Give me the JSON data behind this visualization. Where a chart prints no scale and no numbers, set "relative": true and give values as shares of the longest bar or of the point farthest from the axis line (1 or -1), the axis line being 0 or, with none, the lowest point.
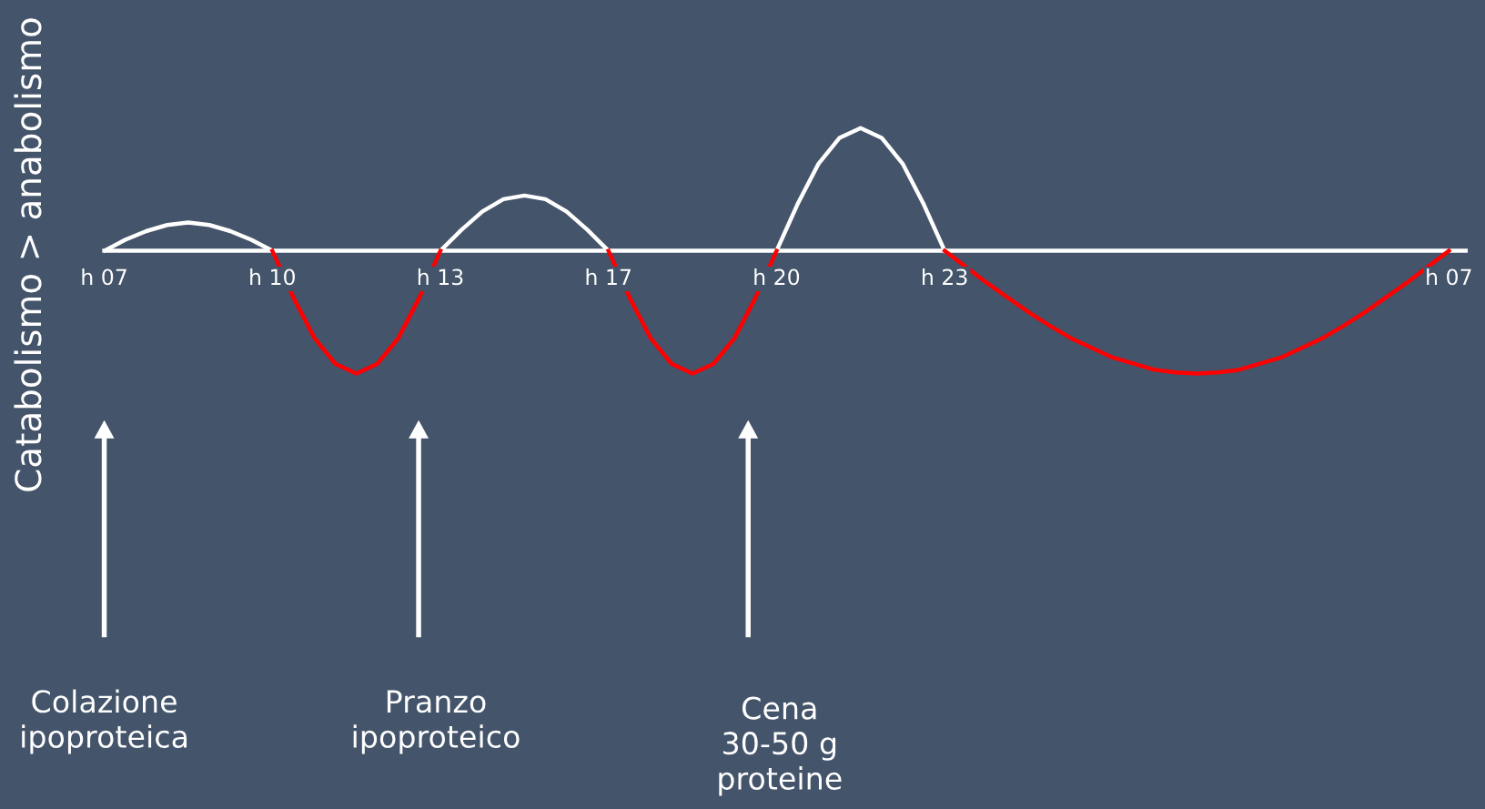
{
  "chart_data": {
    "type": "line",
    "relative": true,
    "ylabel": "Catabolismo > anabolismo",
    "categories": [
      "h 07",
      null,
      null,
      null,
      null,
      null,
      null,
      null,
      "h 10",
      null,
      null,
      null,
      null,
      null,
      null,
      null,
      "h 13",
      null,
      null,
      null,
      null,
      null,
      null,
      null,
      "h 17",
      null,
      null,
      null,
      null,
      null,
      null,
      null,
      "h 20",
      null,
      null,
      null,
      null,
      null,
      null,
      null,
      "h 23",
      null,
      null,
      null,
      null,
      null,
      null,
      null,
      null,
      null,
      null,
      null,
      null,
      null,
      null,
      null,
      null,
      null,
      null,
      null,
      null,
      null,
      null,
      null,
      "h 07"
    ],
    "series": [
      {
        "color": "#ffffff",
        "values": [
          0,
          0.09,
          0.16,
          0.21,
          0.23,
          0.21,
          0.16,
          0.09,
          0,
          null,
          null,
          null,
          null,
          null,
          null,
          null,
          0,
          0.17,
          0.32,
          0.42,
          0.45,
          0.42,
          0.32,
          0.17,
          0,
          null,
          null,
          null,
          null,
          null,
          null,
          null,
          0,
          0.38,
          0.71,
          0.92,
          1,
          0.92,
          0.71,
          0.38,
          0,
          null,
          null,
          null,
          null,
          null,
          null,
          null,
          null,
          null,
          null,
          null,
          null,
          null,
          null,
          null,
          null,
          null,
          null,
          null,
          null,
          null,
          null,
          null,
          null
        ]
      },
      {
        "color": "#ff0000",
        "values": [
          null,
          null,
          null,
          null,
          null,
          null,
          null,
          null,
          0,
          -0.38,
          -0.71,
          -0.92,
          -1,
          -0.92,
          -0.71,
          -0.38,
          0,
          null,
          null,
          null,
          null,
          null,
          null,
          null,
          0,
          -0.38,
          -0.71,
          -0.92,
          -1,
          -0.92,
          -0.71,
          -0.38,
          0,
          null,
          null,
          null,
          null,
          null,
          null,
          null,
          0,
          -0.13,
          -0.26,
          -0.38,
          -0.5,
          -0.61,
          -0.71,
          -0.79,
          -0.87,
          -0.92,
          -0.97,
          -0.99,
          -1,
          -0.99,
          -0.97,
          -0.92,
          -0.87,
          -0.79,
          -0.71,
          -0.61,
          -0.5,
          -0.38,
          -0.26,
          -0.13,
          0
        ]
      }
    ],
    "annotations": [
      "Colazione\nipoproteica",
      "Pranzo\nipoproteico",
      "Cena\n30-50 g\nproteine"
    ],
    "grid": false,
    "legend": false,
    "marker": "none",
    "line_style": "solid"
  }
}
